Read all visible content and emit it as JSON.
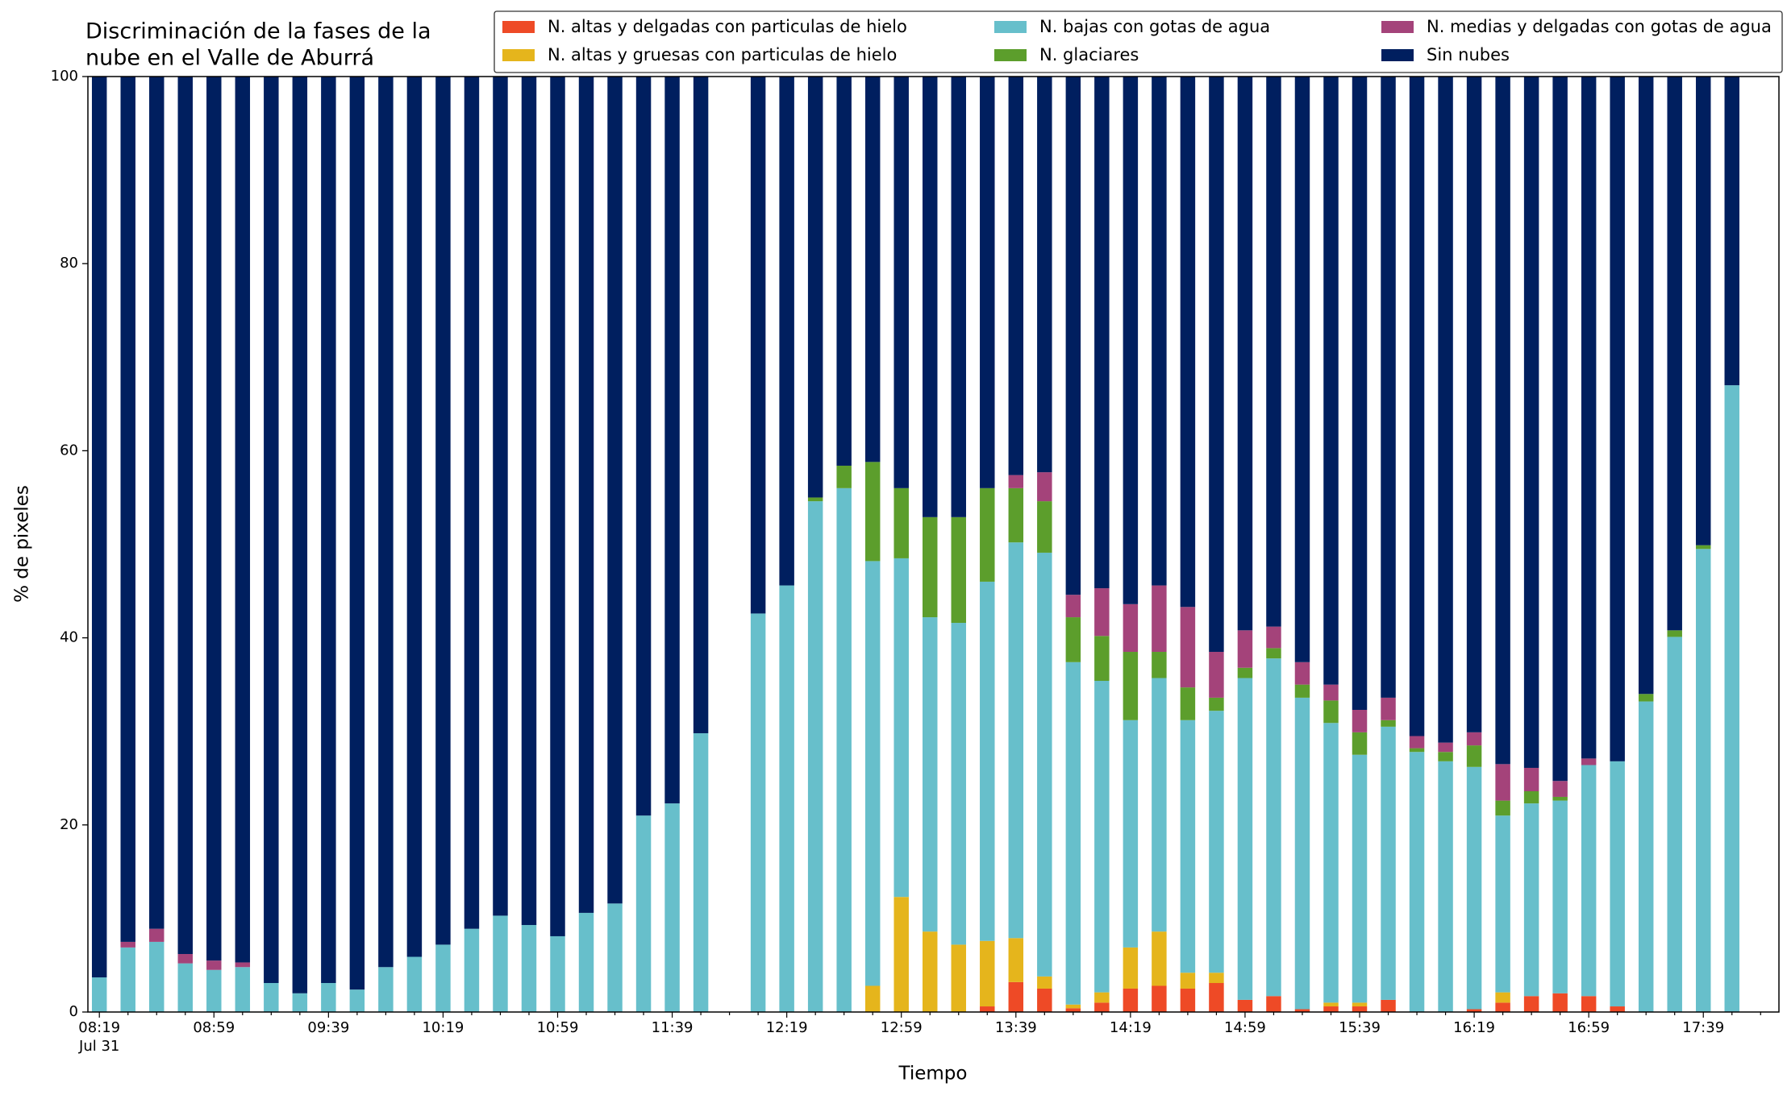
{
  "chart_data": {
    "type": "stacked_bar",
    "title": [
      "Discriminación de la fases de la",
      "nube en el Valle de Aburrá"
    ],
    "xlabel": "Tiempo",
    "ylabel": "% de pixeles",
    "x_date_label": "Jul 31",
    "categories": [
      "08:19",
      null,
      null,
      null,
      "08:59",
      null,
      null,
      null,
      "09:39",
      null,
      null,
      null,
      "10:19",
      null,
      null,
      null,
      "10:59",
      null,
      null,
      null,
      "11:39",
      null,
      null,
      null,
      "12:19",
      null,
      null,
      null,
      "12:59",
      null,
      null,
      null,
      "13:39",
      null,
      null,
      null,
      "14:19",
      null,
      null,
      null,
      "14:59",
      null,
      null,
      null,
      "15:39",
      null,
      null,
      null,
      "16:19",
      null,
      null,
      null,
      "16:59",
      null,
      null,
      null,
      "17:39",
      null
    ],
    "ylim": [
      0,
      100
    ],
    "yticks": [
      0,
      20,
      40,
      60,
      80,
      100
    ],
    "legend": "top",
    "series": [
      {
        "name": "N. altas y delgadas con particulas de hielo",
        "color": "#ee4a26",
        "values": [
          0,
          0,
          0,
          0,
          0,
          0,
          0,
          0,
          0,
          0,
          0,
          0,
          0,
          0,
          0,
          0,
          0,
          0,
          0,
          0,
          0,
          0,
          null,
          0,
          0,
          0,
          0,
          0,
          0,
          0,
          0,
          0.6,
          3.2,
          2.5,
          0.4,
          1.0,
          2.5,
          2.8,
          2.5,
          3.1,
          1.3,
          1.7,
          0.3,
          0.6,
          0.6,
          1.3,
          0,
          0,
          0.3,
          1.0,
          1.7,
          2.0,
          1.7,
          0.6,
          0,
          0,
          0,
          0
        ]
      },
      {
        "name": "N. altas y gruesas con particulas de hielo",
        "color": "#e5b51c",
        "values": [
          0,
          0,
          0,
          0,
          0,
          0,
          0,
          0,
          0,
          0,
          0,
          0,
          0,
          0,
          0,
          0,
          0,
          0,
          0,
          0,
          0,
          0,
          null,
          0,
          0,
          0,
          0,
          2.8,
          12.3,
          8.6,
          7.2,
          7.0,
          4.7,
          1.3,
          0.4,
          1.1,
          4.4,
          5.8,
          1.7,
          1.1,
          0,
          0,
          0,
          0.4,
          0.4,
          0,
          0,
          0,
          0,
          1.1,
          0,
          0,
          0,
          0,
          0,
          0,
          0,
          0
        ]
      },
      {
        "name": "N. bajas con gotas de agua",
        "color": "#67bfcb",
        "values": [
          3.7,
          6.9,
          7.5,
          5.2,
          4.5,
          4.8,
          3.1,
          2.0,
          3.1,
          2.4,
          4.8,
          5.9,
          7.2,
          8.9,
          10.3,
          9.3,
          8.1,
          10.6,
          11.6,
          21.0,
          22.3,
          29.8,
          null,
          42.6,
          45.6,
          54.6,
          56.0,
          45.4,
          36.2,
          33.6,
          34.4,
          38.4,
          42.3,
          45.3,
          36.6,
          33.3,
          24.3,
          27.1,
          27.0,
          28.0,
          34.4,
          36.1,
          33.3,
          29.9,
          26.5,
          29.2,
          27.8,
          26.8,
          25.9,
          18.9,
          20.6,
          20.6,
          24.7,
          26.2,
          33.2,
          40.1,
          49.5,
          67.0
        ]
      },
      {
        "name": "N. glaciares",
        "color": "#5c9e2c",
        "values": [
          0,
          0,
          0,
          0,
          0,
          0,
          0,
          0,
          0,
          0,
          0,
          0,
          0,
          0,
          0,
          0,
          0,
          0,
          0,
          0,
          0,
          0,
          null,
          0,
          0,
          0.4,
          2.4,
          10.6,
          7.5,
          10.7,
          11.3,
          10.0,
          5.8,
          5.5,
          4.8,
          4.8,
          7.3,
          2.8,
          3.5,
          1.4,
          1.1,
          1.1,
          1.4,
          2.4,
          2.4,
          0.7,
          0.4,
          1.0,
          2.3,
          1.6,
          1.3,
          0.4,
          0,
          0,
          0.8,
          0.7,
          0.4,
          0
        ]
      },
      {
        "name": "N. medias y delgadas con gotas de agua",
        "color": "#a4437a",
        "values": [
          0,
          0.6,
          1.4,
          1.0,
          1.0,
          0.5,
          0,
          0,
          0,
          0,
          0,
          0,
          0,
          0,
          0,
          0,
          0,
          0,
          0,
          0,
          0,
          0,
          null,
          0,
          0,
          0,
          0,
          0,
          0,
          0,
          0,
          0,
          1.4,
          3.1,
          2.4,
          5.1,
          5.1,
          7.1,
          8.6,
          4.9,
          4.0,
          2.3,
          2.4,
          1.7,
          2.4,
          2.4,
          1.3,
          1.0,
          1.4,
          3.9,
          2.5,
          1.7,
          0.7,
          0,
          0,
          0,
          0,
          0
        ]
      },
      {
        "name": "Sin nubes",
        "color": "#001f5f",
        "values": [
          96.3,
          92.5,
          91.1,
          93.8,
          94.5,
          94.7,
          96.9,
          98.0,
          96.9,
          97.6,
          95.2,
          94.1,
          92.8,
          91.1,
          89.7,
          90.7,
          91.9,
          89.4,
          88.4,
          79.0,
          77.7,
          70.2,
          null,
          57.4,
          54.4,
          45.0,
          41.6,
          41.2,
          44.0,
          47.1,
          47.1,
          44.0,
          42.6,
          42.3,
          55.4,
          54.7,
          56.4,
          54.4,
          56.7,
          61.5,
          59.2,
          58.8,
          62.6,
          65.0,
          67.7,
          66.4,
          70.5,
          71.2,
          70.1,
          73.5,
          73.9,
          75.3,
          72.9,
          73.2,
          66.0,
          59.2,
          50.1,
          33.0
        ]
      }
    ]
  }
}
